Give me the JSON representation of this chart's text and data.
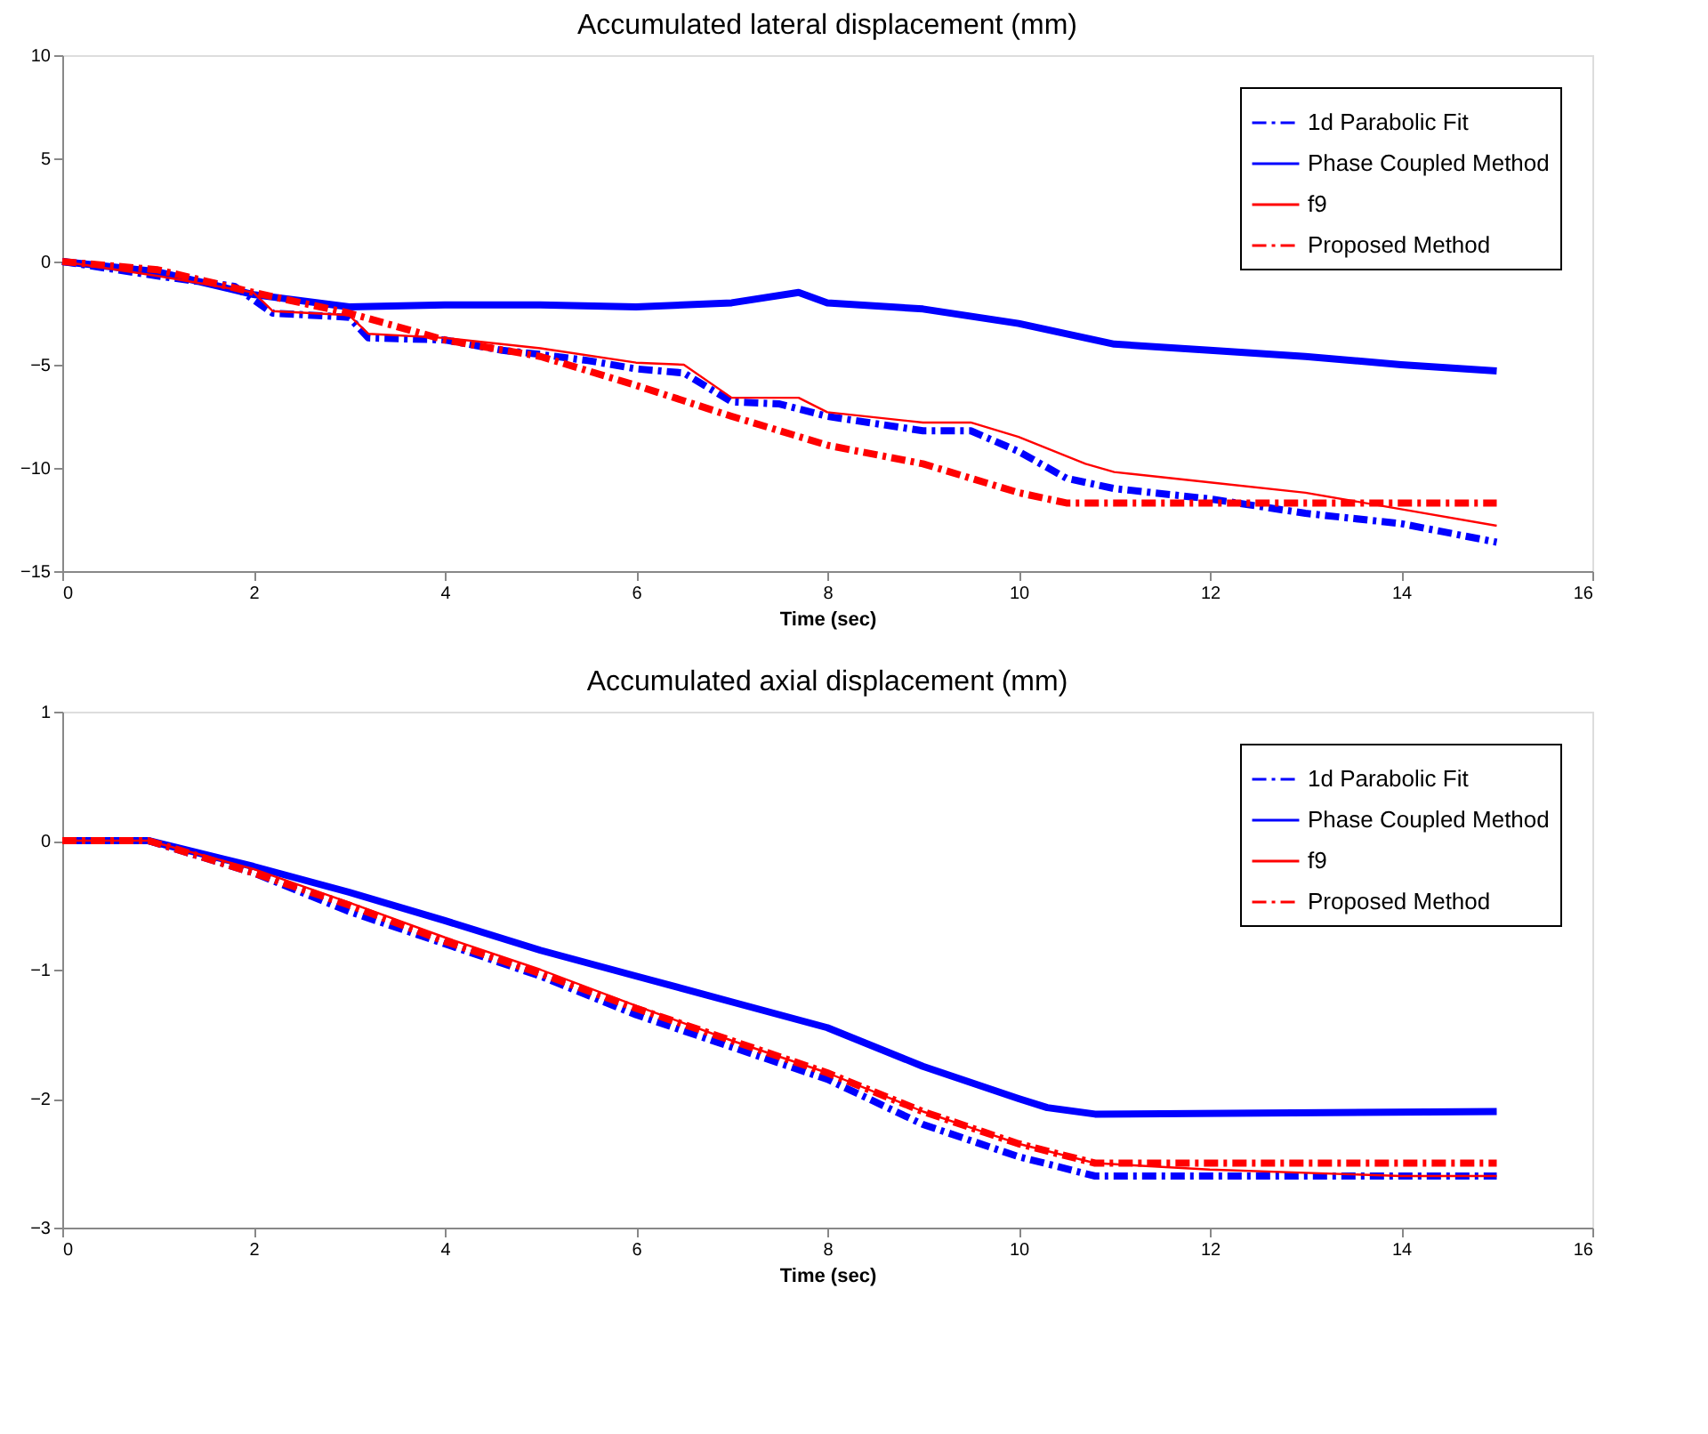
{
  "chart_data": [
    {
      "type": "line",
      "title": "Accumulated lateral displacement (mm)",
      "xlabel": "Time (sec)",
      "xlim": [
        0,
        16
      ],
      "xticks": [
        0,
        2,
        4,
        6,
        8,
        10,
        12,
        14,
        16
      ],
      "ylim": [
        -15,
        10
      ],
      "yticks": [
        -15,
        -10,
        -5,
        0,
        5,
        10
      ],
      "grid": false,
      "legend": "top right",
      "marker": "none",
      "series": [
        {
          "name": "1d Parabolic Fit",
          "color": "#0000ff",
          "line_style": "dashed",
          "x": [
            0,
            1,
            1.8,
            2.2,
            3,
            3.2,
            4,
            4.6,
            5,
            5.5,
            6,
            6.5,
            7,
            7.5,
            8,
            9,
            9.5,
            10,
            10.5,
            11,
            12,
            13,
            14,
            15
          ],
          "values": [
            0,
            -0.7,
            -1.2,
            -2.5,
            -2.7,
            -3.7,
            -3.8,
            -4.3,
            -4.5,
            -4.8,
            -5.2,
            -5.4,
            -6.8,
            -6.9,
            -7.5,
            -8.2,
            -8.2,
            -9.2,
            -10.5,
            -11,
            -11.5,
            -12.2,
            -12.7,
            -13.6
          ]
        },
        {
          "name": "Phase Coupled Method",
          "color": "#0000ff",
          "line_style": "solid",
          "x": [
            0,
            1,
            2,
            3,
            4,
            5,
            6,
            7,
            7.7,
            8,
            9,
            10,
            11,
            12,
            13,
            14,
            15
          ],
          "values": [
            0,
            -0.5,
            -1.6,
            -2.2,
            -2.1,
            -2.1,
            -2.2,
            -2,
            -1.5,
            -2,
            -2.3,
            -3,
            -4,
            -4.3,
            -4.6,
            -5,
            -5.3
          ]
        },
        {
          "name": "f9",
          "color": "#ff0000",
          "line_style": "solid",
          "x": [
            0,
            1,
            2,
            2.2,
            3,
            3.2,
            4,
            5,
            6,
            6.5,
            7,
            7.7,
            8,
            9,
            9.5,
            10,
            10.7,
            11,
            12,
            13,
            14,
            15
          ],
          "values": [
            0,
            -0.7,
            -1.5,
            -2.4,
            -2.6,
            -3.5,
            -3.7,
            -4.2,
            -4.9,
            -5,
            -6.6,
            -6.6,
            -7.3,
            -7.8,
            -7.8,
            -8.5,
            -9.8,
            -10.2,
            -10.7,
            -11.2,
            -12,
            -12.8
          ]
        },
        {
          "name": "Proposed Method",
          "color": "#ff0000",
          "line_style": "dashed",
          "x": [
            0,
            1,
            2,
            3,
            4,
            5,
            6,
            7,
            8,
            9,
            10,
            10.5,
            15
          ],
          "values": [
            0,
            -0.4,
            -1.5,
            -2.5,
            -3.8,
            -4.6,
            -6,
            -7.5,
            -8.9,
            -9.8,
            -11.2,
            -11.7,
            -11.7
          ]
        }
      ]
    },
    {
      "type": "line",
      "title": "Accumulated axial displacement (mm)",
      "xlabel": "Time (sec)",
      "xlim": [
        0,
        16
      ],
      "xticks": [
        0,
        2,
        4,
        6,
        8,
        10,
        12,
        14,
        16
      ],
      "ylim": [
        -3,
        1
      ],
      "yticks": [
        -3,
        -2,
        -1,
        0,
        1
      ],
      "grid": false,
      "legend": "top right",
      "marker": "none",
      "series": [
        {
          "name": "1d Parabolic Fit",
          "color": "#0000ff",
          "line_style": "dashed",
          "x": [
            0,
            0.9,
            2,
            3,
            4,
            5,
            6,
            7,
            8,
            9,
            10,
            10.8,
            15
          ],
          "values": [
            0,
            0,
            -0.25,
            -0.55,
            -0.8,
            -1.05,
            -1.35,
            -1.6,
            -1.85,
            -2.2,
            -2.45,
            -2.6,
            -2.6
          ]
        },
        {
          "name": "Phase Coupled Method",
          "color": "#0000ff",
          "line_style": "solid",
          "x": [
            0,
            0.9,
            2,
            3,
            4,
            5,
            6,
            7,
            8,
            9,
            10,
            10.3,
            10.8,
            15
          ],
          "values": [
            0,
            0,
            -0.2,
            -0.4,
            -0.62,
            -0.85,
            -1.05,
            -1.25,
            -1.45,
            -1.75,
            -2,
            -2.07,
            -2.12,
            -2.1
          ]
        },
        {
          "name": "f9",
          "color": "#ff0000",
          "line_style": "solid",
          "x": [
            0,
            0.9,
            2,
            3,
            4,
            5,
            6,
            7,
            8,
            9,
            10,
            10.8,
            12,
            14,
            15
          ],
          "values": [
            0,
            0,
            -0.22,
            -0.48,
            -0.75,
            -1,
            -1.28,
            -1.55,
            -1.8,
            -2.1,
            -2.35,
            -2.5,
            -2.55,
            -2.6,
            -2.6
          ]
        },
        {
          "name": "Proposed Method",
          "color": "#ff0000",
          "line_style": "dashed",
          "x": [
            0,
            0.9,
            2,
            3,
            4,
            5,
            6,
            7,
            8,
            9,
            10,
            10.8,
            15
          ],
          "values": [
            0,
            0,
            -0.25,
            -0.5,
            -0.78,
            -1.03,
            -1.3,
            -1.55,
            -1.8,
            -2.1,
            -2.35,
            -2.5,
            -2.5
          ]
        }
      ]
    }
  ]
}
